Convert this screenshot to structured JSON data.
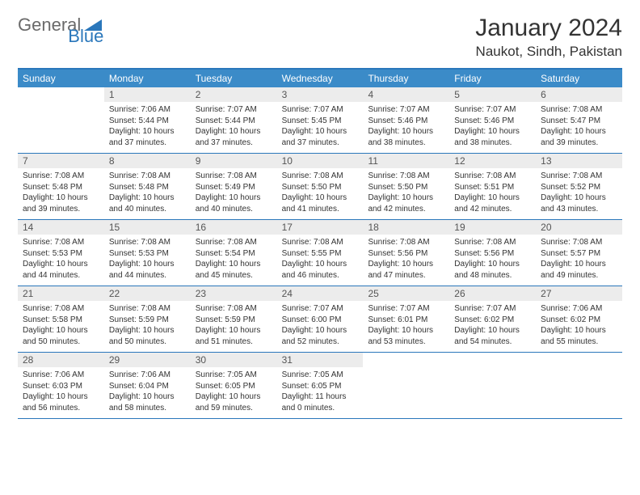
{
  "logo": {
    "word1": "General",
    "word2": "Blue"
  },
  "title": "January 2024",
  "location": "Naukot, Sindh, Pakistan",
  "colors": {
    "accent": "#2a77bb",
    "header_bg": "#3b8bc8",
    "daynum_bg": "#ececec",
    "text": "#333333",
    "logo_gray": "#6a6a6a"
  },
  "daysOfWeek": [
    "Sunday",
    "Monday",
    "Tuesday",
    "Wednesday",
    "Thursday",
    "Friday",
    "Saturday"
  ],
  "weeks": [
    [
      {
        "n": "",
        "sr": "",
        "ss": "",
        "dl": ""
      },
      {
        "n": "1",
        "sr": "Sunrise: 7:06 AM",
        "ss": "Sunset: 5:44 PM",
        "dl": "Daylight: 10 hours and 37 minutes."
      },
      {
        "n": "2",
        "sr": "Sunrise: 7:07 AM",
        "ss": "Sunset: 5:44 PM",
        "dl": "Daylight: 10 hours and 37 minutes."
      },
      {
        "n": "3",
        "sr": "Sunrise: 7:07 AM",
        "ss": "Sunset: 5:45 PM",
        "dl": "Daylight: 10 hours and 37 minutes."
      },
      {
        "n": "4",
        "sr": "Sunrise: 7:07 AM",
        "ss": "Sunset: 5:46 PM",
        "dl": "Daylight: 10 hours and 38 minutes."
      },
      {
        "n": "5",
        "sr": "Sunrise: 7:07 AM",
        "ss": "Sunset: 5:46 PM",
        "dl": "Daylight: 10 hours and 38 minutes."
      },
      {
        "n": "6",
        "sr": "Sunrise: 7:08 AM",
        "ss": "Sunset: 5:47 PM",
        "dl": "Daylight: 10 hours and 39 minutes."
      }
    ],
    [
      {
        "n": "7",
        "sr": "Sunrise: 7:08 AM",
        "ss": "Sunset: 5:48 PM",
        "dl": "Daylight: 10 hours and 39 minutes."
      },
      {
        "n": "8",
        "sr": "Sunrise: 7:08 AM",
        "ss": "Sunset: 5:48 PM",
        "dl": "Daylight: 10 hours and 40 minutes."
      },
      {
        "n": "9",
        "sr": "Sunrise: 7:08 AM",
        "ss": "Sunset: 5:49 PM",
        "dl": "Daylight: 10 hours and 40 minutes."
      },
      {
        "n": "10",
        "sr": "Sunrise: 7:08 AM",
        "ss": "Sunset: 5:50 PM",
        "dl": "Daylight: 10 hours and 41 minutes."
      },
      {
        "n": "11",
        "sr": "Sunrise: 7:08 AM",
        "ss": "Sunset: 5:50 PM",
        "dl": "Daylight: 10 hours and 42 minutes."
      },
      {
        "n": "12",
        "sr": "Sunrise: 7:08 AM",
        "ss": "Sunset: 5:51 PM",
        "dl": "Daylight: 10 hours and 42 minutes."
      },
      {
        "n": "13",
        "sr": "Sunrise: 7:08 AM",
        "ss": "Sunset: 5:52 PM",
        "dl": "Daylight: 10 hours and 43 minutes."
      }
    ],
    [
      {
        "n": "14",
        "sr": "Sunrise: 7:08 AM",
        "ss": "Sunset: 5:53 PM",
        "dl": "Daylight: 10 hours and 44 minutes."
      },
      {
        "n": "15",
        "sr": "Sunrise: 7:08 AM",
        "ss": "Sunset: 5:53 PM",
        "dl": "Daylight: 10 hours and 44 minutes."
      },
      {
        "n": "16",
        "sr": "Sunrise: 7:08 AM",
        "ss": "Sunset: 5:54 PM",
        "dl": "Daylight: 10 hours and 45 minutes."
      },
      {
        "n": "17",
        "sr": "Sunrise: 7:08 AM",
        "ss": "Sunset: 5:55 PM",
        "dl": "Daylight: 10 hours and 46 minutes."
      },
      {
        "n": "18",
        "sr": "Sunrise: 7:08 AM",
        "ss": "Sunset: 5:56 PM",
        "dl": "Daylight: 10 hours and 47 minutes."
      },
      {
        "n": "19",
        "sr": "Sunrise: 7:08 AM",
        "ss": "Sunset: 5:56 PM",
        "dl": "Daylight: 10 hours and 48 minutes."
      },
      {
        "n": "20",
        "sr": "Sunrise: 7:08 AM",
        "ss": "Sunset: 5:57 PM",
        "dl": "Daylight: 10 hours and 49 minutes."
      }
    ],
    [
      {
        "n": "21",
        "sr": "Sunrise: 7:08 AM",
        "ss": "Sunset: 5:58 PM",
        "dl": "Daylight: 10 hours and 50 minutes."
      },
      {
        "n": "22",
        "sr": "Sunrise: 7:08 AM",
        "ss": "Sunset: 5:59 PM",
        "dl": "Daylight: 10 hours and 50 minutes."
      },
      {
        "n": "23",
        "sr": "Sunrise: 7:08 AM",
        "ss": "Sunset: 5:59 PM",
        "dl": "Daylight: 10 hours and 51 minutes."
      },
      {
        "n": "24",
        "sr": "Sunrise: 7:07 AM",
        "ss": "Sunset: 6:00 PM",
        "dl": "Daylight: 10 hours and 52 minutes."
      },
      {
        "n": "25",
        "sr": "Sunrise: 7:07 AM",
        "ss": "Sunset: 6:01 PM",
        "dl": "Daylight: 10 hours and 53 minutes."
      },
      {
        "n": "26",
        "sr": "Sunrise: 7:07 AM",
        "ss": "Sunset: 6:02 PM",
        "dl": "Daylight: 10 hours and 54 minutes."
      },
      {
        "n": "27",
        "sr": "Sunrise: 7:06 AM",
        "ss": "Sunset: 6:02 PM",
        "dl": "Daylight: 10 hours and 55 minutes."
      }
    ],
    [
      {
        "n": "28",
        "sr": "Sunrise: 7:06 AM",
        "ss": "Sunset: 6:03 PM",
        "dl": "Daylight: 10 hours and 56 minutes."
      },
      {
        "n": "29",
        "sr": "Sunrise: 7:06 AM",
        "ss": "Sunset: 6:04 PM",
        "dl": "Daylight: 10 hours and 58 minutes."
      },
      {
        "n": "30",
        "sr": "Sunrise: 7:05 AM",
        "ss": "Sunset: 6:05 PM",
        "dl": "Daylight: 10 hours and 59 minutes."
      },
      {
        "n": "31",
        "sr": "Sunrise: 7:05 AM",
        "ss": "Sunset: 6:05 PM",
        "dl": "Daylight: 11 hours and 0 minutes."
      },
      {
        "n": "",
        "sr": "",
        "ss": "",
        "dl": ""
      },
      {
        "n": "",
        "sr": "",
        "ss": "",
        "dl": ""
      },
      {
        "n": "",
        "sr": "",
        "ss": "",
        "dl": ""
      }
    ]
  ]
}
